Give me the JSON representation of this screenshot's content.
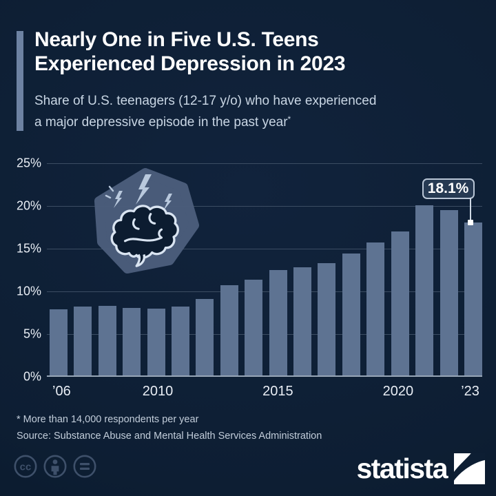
{
  "header": {
    "title_line1": "Nearly One in Five U.S. Teens",
    "title_line2": "Experienced Depression in 2023",
    "subtitle_line1": "Share of U.S. teenagers (12-17 y/o) who have experienced",
    "subtitle_line2": "a major depressive episode in the past year",
    "subtitle_note_symbol": "*"
  },
  "chart_data": {
    "type": "bar",
    "title": "Nearly One in Five U.S. Teens Experienced Depression in 2023",
    "subtitle": "Share of U.S. teenagers (12-17 y/o) who have experienced a major depressive episode in the past year*",
    "xlabel": "",
    "ylabel": "",
    "unit": "%",
    "categories": [
      2006,
      2007,
      2008,
      2009,
      2010,
      2011,
      2012,
      2013,
      2014,
      2015,
      2016,
      2017,
      2018,
      2019,
      2020,
      2021,
      2022,
      2023
    ],
    "values": [
      7.9,
      8.2,
      8.3,
      8.1,
      8.0,
      8.2,
      9.1,
      10.7,
      11.4,
      12.5,
      12.8,
      13.3,
      14.4,
      15.7,
      17.0,
      20.1,
      19.5,
      18.1
    ],
    "ylim": [
      0,
      25
    ],
    "grid": true,
    "legend": "none",
    "y_ticks": [
      {
        "value": 0,
        "label": "0%"
      },
      {
        "value": 5,
        "label": "5%"
      },
      {
        "value": 10,
        "label": "10%"
      },
      {
        "value": 15,
        "label": "15%"
      },
      {
        "value": 20,
        "label": "20%"
      },
      {
        "value": 25,
        "label": "25%"
      }
    ],
    "x_tick_labels": [
      {
        "index": 0,
        "label": "’06"
      },
      {
        "index": 4,
        "label": "2010"
      },
      {
        "index": 9,
        "label": "2015"
      },
      {
        "index": 14,
        "label": "2020"
      },
      {
        "index": 17,
        "label": "’23"
      }
    ],
    "annotation": {
      "index": 17,
      "label": "18.1%"
    },
    "bar_color": "#5e7392"
  },
  "badge": {
    "icon": "brain-with-lightning-bolts"
  },
  "footer": {
    "note": "* More than 14,000 respondents per year",
    "source": "Source: Substance Abuse and Mental Health Services Administration"
  },
  "branding": {
    "wordmark": "statista",
    "license_icons": [
      "cc",
      "attribution",
      "no-derivatives"
    ]
  },
  "colors": {
    "background": "#0d1e33",
    "accent_bar": "#6d82a2",
    "badge": "#4c5e7c",
    "title_text": "#ffffff",
    "subtitle_text": "#c9d6e4",
    "axis_text": "#e9eef5",
    "gridline": "#3c4d63",
    "baseline": "#98a6b7",
    "callout_border": "#b9c6d6"
  }
}
